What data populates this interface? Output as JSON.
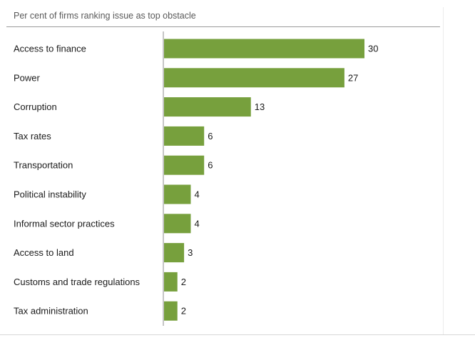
{
  "chart_data": {
    "type": "bar",
    "orientation": "horizontal",
    "title": "Per cent of firms ranking issue as top obstacle",
    "categories": [
      "Access to finance",
      "Power",
      "Corruption",
      "Tax rates",
      "Transportation",
      "Political instability",
      "Informal sector practices",
      "Access to land",
      "Customs and trade regulations",
      "Tax administration"
    ],
    "values": [
      30,
      27,
      13,
      6,
      6,
      4,
      4,
      3,
      2,
      2
    ],
    "xlim": [
      0,
      30
    ],
    "xlabel": "",
    "ylabel": "",
    "grid": false,
    "bar_color": "#77a03d",
    "data_labels": true
  }
}
